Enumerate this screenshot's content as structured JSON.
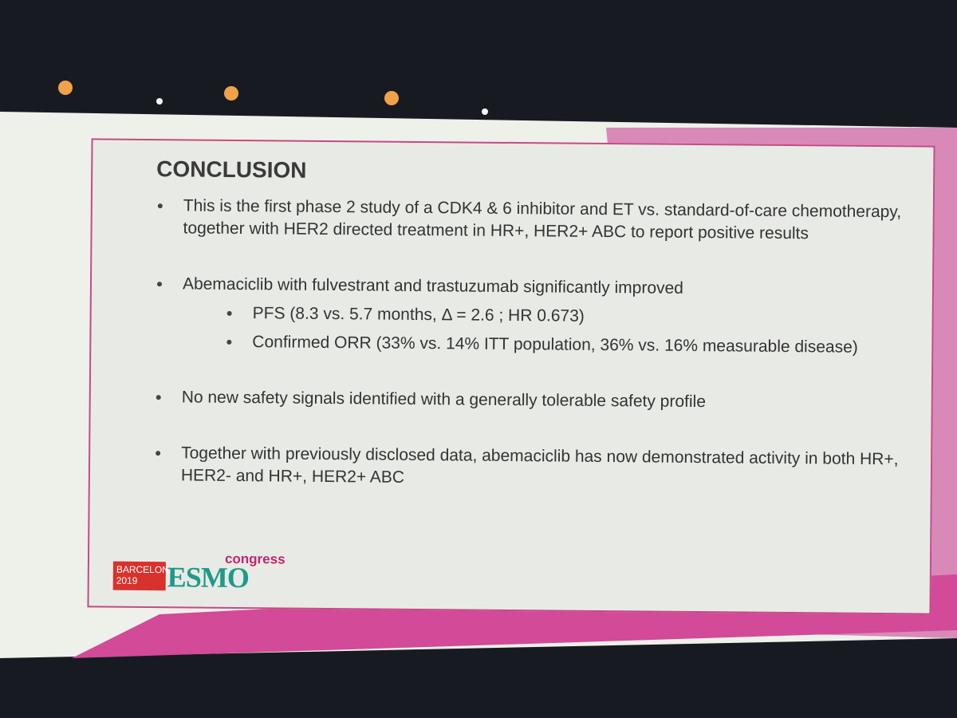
{
  "slide": {
    "title": "CONCLUSION",
    "bullets": [
      {
        "text": "This is the first phase 2 study of a CDK4 & 6 inhibitor and ET vs. standard-of-care chemotherapy, together with HER2 directed treatment in HR+, HER2+ ABC to report positive results"
      },
      {
        "text": "Abemaciclib with fulvestrant and trastuzumab significantly improved",
        "sub_bullets": [
          "PFS (8.3 vs. 5.7 months, Δ = 2.6 ; HR 0.673)",
          "Confirmed ORR (33% vs. 14% ITT population, 36% vs. 16% measurable disease)"
        ]
      },
      {
        "text": "No new safety signals identified with a generally tolerable safety profile"
      },
      {
        "text": "Together with previously disclosed data, abemaciclib has now demonstrated activity in both HR+, HER2- and HR+, HER2+ ABC"
      }
    ],
    "logo": {
      "city": "BARCELONA",
      "year": "2019",
      "brand": "ESMO",
      "event": "congress"
    }
  }
}
